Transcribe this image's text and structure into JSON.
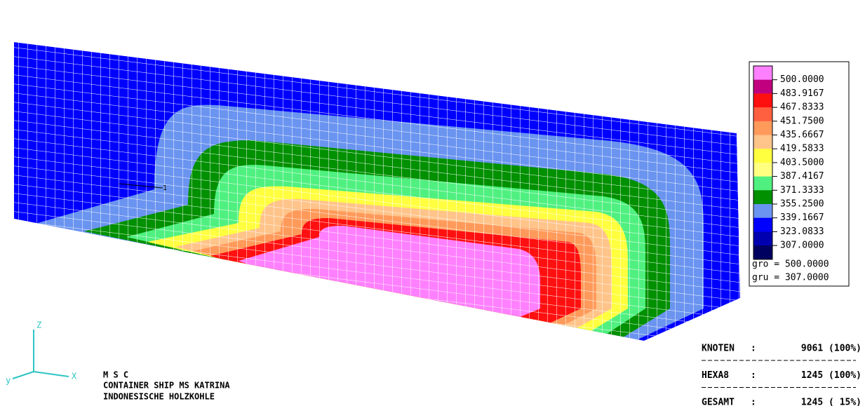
{
  "legend": {
    "colors": [
      "#ff80ff",
      "#c0007f",
      "#ff1010",
      "#ff6040",
      "#ff9a5a",
      "#ffc48a",
      "#ffff40",
      "#ffff80",
      "#50f080",
      "#009000",
      "#6a94f0",
      "#0000ff",
      "#0000b0",
      "#000060"
    ],
    "levels": [
      "500.0000",
      "483.9167",
      "467.8333",
      "451.7500",
      "435.6667",
      "419.5833",
      "403.5000",
      "387.4167",
      "371.3333",
      "355.2500",
      "339.1667",
      "323.0833",
      "307.0000"
    ],
    "max": "gro = 500.0000",
    "min": "gru = 307.0000"
  },
  "mesh": {
    "node_label": "1"
  },
  "axes": {
    "z": "Z",
    "x": "X",
    "y": "y"
  },
  "caption": [
    "M S C",
    "CONTAINER SHIP MS KATRINA",
    "INDONESISCHE HOLZKOHLE"
  ],
  "stats": [
    [
      "KNOTEN",
      ":",
      "9061 (100%)"
    ],
    [
      "HEXA8",
      ":",
      "1245 (100%)"
    ],
    [
      "GESAMT",
      ":",
      "1245 ( 15%)"
    ]
  ]
}
